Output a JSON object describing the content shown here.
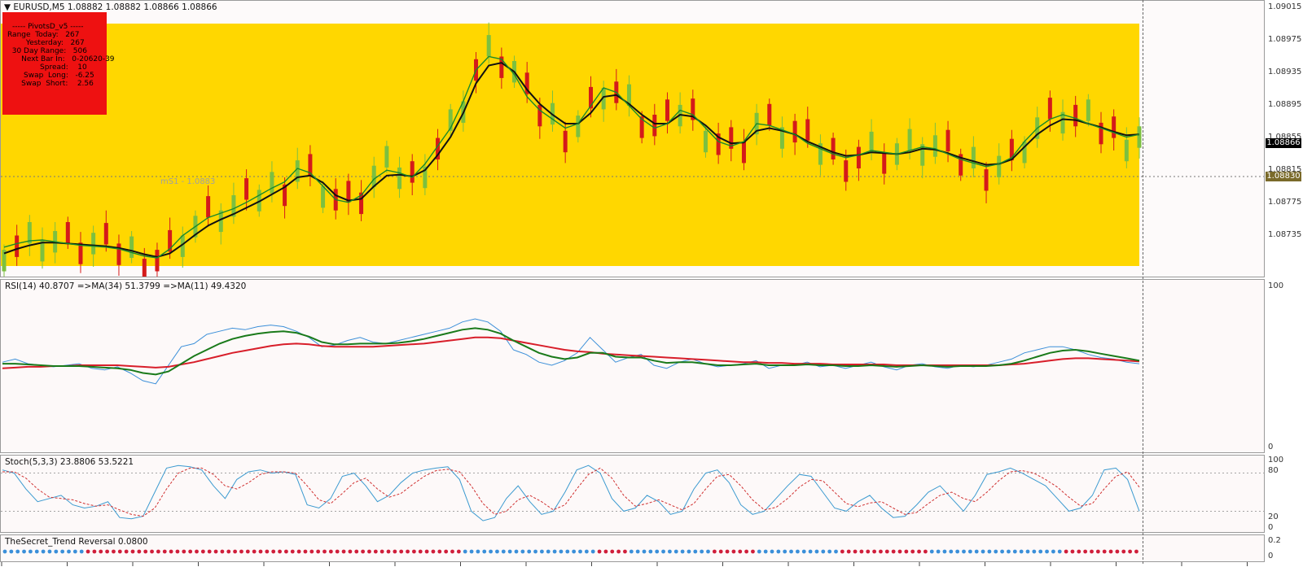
{
  "symbol_line": "▼ EURUSD,M5  1.08882 1.08882 1.08866 1.08866",
  "colors": {
    "yellow_band": "#ffd700",
    "bull_candle": "#7cc040",
    "bear_candle": "#d41a1a",
    "ma_fast": "#1a8a2a",
    "ma_slow": "#111111",
    "rsi_line": "#3b8fd9",
    "rsi_ma34": "#d81e2a",
    "rsi_ma11": "#1a7a1a",
    "stoch_main": "#3b9ad0",
    "stoch_signal": "#d03030",
    "trend_blue": "#3b8fd9",
    "trend_red": "#d01e3a"
  },
  "pivot": {
    "title": "----- PivotsD_v5 -----",
    "rows": [
      "Range  Today:   267",
      "        Yesterday:   267",
      "  30 Day Range:   506",
      "      Next Bar In:   0-20620-39",
      "              Spread:    10",
      "       Swap  Long:   -6.25",
      "      Swap  Short:    2.56"
    ]
  },
  "ms1_label": "mS1 - 1.0883",
  "price_axis": {
    "ticks": [
      "1.09015",
      "1.08975",
      "1.08935",
      "1.08895",
      "1.08855",
      "1.08815",
      "1.08775",
      "1.08735"
    ],
    "current_price": "1.08866",
    "level_price": "1.08830"
  },
  "rsi": {
    "title": "RSI(14) 40.8707  =>MA(34) 51.3799  =>MA(11) 49.4320",
    "ticks": [
      "100",
      "0"
    ]
  },
  "stoch": {
    "title": "Stoch(5,3,3) 23.8806 53.5221",
    "ticks": [
      "100",
      "80",
      "20",
      "0"
    ]
  },
  "trend": {
    "title": "TheSecret_Trend Reversal 0.0800",
    "ticks": [
      "0.2",
      "0"
    ]
  },
  "chart_data": {
    "type": "line",
    "price_min": 1.0872,
    "price_max": 1.0903,
    "ma_fast_closes": [
      1.08762,
      1.08766,
      1.08769,
      1.0877,
      1.08768,
      1.08766,
      1.08764,
      1.08763,
      1.08762,
      1.0876,
      1.08756,
      1.08752,
      1.0875,
      1.0876,
      1.08775,
      1.08785,
      1.08795,
      1.088,
      1.08805,
      1.08812,
      1.0882,
      1.08828,
      1.08835,
      1.0885,
      1.08845,
      1.0883,
      1.08815,
      1.08812,
      1.0882,
      1.08838,
      1.08848,
      1.08845,
      1.0884,
      1.08855,
      1.08875,
      1.08895,
      1.08925,
      1.0896,
      1.08975,
      1.08972,
      1.08955,
      1.0893,
      1.08915,
      1.08905,
      1.08895,
      1.089,
      1.0892,
      1.0894,
      1.08935,
      1.0892,
      1.08905,
      1.08895,
      1.089,
      1.08915,
      1.0891,
      1.08895,
      1.0888,
      1.08875,
      1.0888,
      1.089,
      1.08898,
      1.08893,
      1.08888,
      1.08878,
      1.08872,
      1.08866,
      1.08862,
      1.08865,
      1.0887,
      1.08868,
      1.08866,
      1.0887,
      1.08874,
      1.08872,
      1.08866,
      1.0886,
      1.08856,
      1.08852,
      1.08855,
      1.08862,
      1.0888,
      1.08895,
      1.08905,
      1.0891,
      1.08906,
      1.089,
      1.08895,
      1.0889,
      1.08885,
      1.08888
    ],
    "ma_slow_closes": [
      1.08755,
      1.0876,
      1.08764,
      1.08767,
      1.08767,
      1.08766,
      1.08765,
      1.08764,
      1.08763,
      1.08761,
      1.08758,
      1.08754,
      1.08751,
      1.08755,
      1.08765,
      1.08776,
      1.08786,
      1.08793,
      1.08799,
      1.08806,
      1.08813,
      1.08821,
      1.08829,
      1.0884,
      1.08842,
      1.08834,
      1.0882,
      1.08814,
      1.08816,
      1.0883,
      1.08842,
      1.08843,
      1.08841,
      1.08848,
      1.08865,
      1.08885,
      1.08912,
      1.08945,
      1.08965,
      1.08968,
      1.08958,
      1.08938,
      1.08922,
      1.0891,
      1.089,
      1.089,
      1.08912,
      1.0893,
      1.08932,
      1.08922,
      1.0891,
      1.089,
      1.089,
      1.0891,
      1.08908,
      1.08898,
      1.08885,
      1.08878,
      1.08879,
      1.08892,
      1.08895,
      1.08892,
      1.08888,
      1.0888,
      1.08874,
      1.08868,
      1.08864,
      1.08865,
      1.08868,
      1.08867,
      1.08866,
      1.08868,
      1.08872,
      1.08871,
      1.08867,
      1.08862,
      1.08858,
      1.08854,
      1.08855,
      1.0886,
      1.08874,
      1.08888,
      1.08898,
      1.08905,
      1.08904,
      1.089,
      1.08896,
      1.08891,
      1.08887,
      1.08888
    ],
    "rsi_values": [
      52,
      54,
      51,
      50,
      49,
      50,
      51,
      48,
      47,
      49,
      45,
      40,
      38,
      50,
      62,
      64,
      70,
      72,
      74,
      73,
      75,
      76,
      75,
      72,
      68,
      62,
      63,
      66,
      68,
      65,
      64,
      66,
      68,
      70,
      72,
      74,
      78,
      80,
      78,
      72,
      60,
      57,
      52,
      50,
      53,
      58,
      68,
      60,
      52,
      55,
      57,
      50,
      48,
      52,
      54,
      51,
      49,
      50,
      51,
      53,
      48,
      50,
      50,
      52,
      49,
      50,
      48,
      50,
      52,
      49,
      47,
      50,
      51,
      49,
      48,
      50,
      49,
      50,
      52,
      54,
      58,
      60,
      62,
      62,
      60,
      57,
      55,
      54,
      52,
      51
    ],
    "rsi_ma34": [
      48,
      48.5,
      49,
      49,
      49.5,
      49.5,
      50,
      50,
      50,
      50,
      49.5,
      49,
      48.5,
      49,
      50.5,
      52,
      54,
      56,
      58,
      59.5,
      61,
      62.5,
      63.5,
      64,
      63.5,
      62.5,
      62,
      62,
      62,
      62,
      62.5,
      63,
      63.5,
      64,
      65,
      66,
      67,
      68,
      68,
      67.5,
      66,
      64.5,
      63,
      61.5,
      60,
      59,
      58.5,
      57.5,
      57,
      56.5,
      56,
      55.5,
      55,
      54.5,
      54,
      53.5,
      53,
      52.5,
      52,
      52,
      51.5,
      51.5,
      51,
      51,
      51,
      50.5,
      50.5,
      50.5,
      50.5,
      50.5,
      50,
      50,
      50,
      50,
      50,
      50,
      50,
      50,
      50,
      50.5,
      51,
      52,
      53,
      54,
      54.5,
      54.5,
      54,
      53.5,
      53,
      52.5
    ],
    "rsi_ma11": [
      51,
      51,
      50.5,
      50,
      49.5,
      49.5,
      49.5,
      49,
      48.5,
      48,
      47,
      45,
      44,
      46,
      51,
      56,
      60,
      64,
      67,
      69,
      70.5,
      71.5,
      72,
      71,
      68.5,
      65,
      63.5,
      63.5,
      64,
      64,
      64,
      64.5,
      65.5,
      67,
      69,
      71,
      73,
      74,
      73,
      70.5,
      66,
      62,
      58,
      55.5,
      54,
      55,
      58,
      58,
      55.5,
      55,
      55,
      53,
      51.5,
      52,
      52,
      51,
      50,
      50,
      50.5,
      51,
      50,
      50,
      50,
      50.5,
      50,
      50,
      49.5,
      49.5,
      50,
      49.5,
      49,
      49.5,
      50,
      49.5,
      49,
      49.5,
      49.5,
      49.5,
      50,
      51,
      53,
      55.5,
      58,
      59.5,
      60,
      59,
      57.5,
      56,
      54.5,
      53
    ],
    "stoch_k": [
      85,
      80,
      55,
      35,
      40,
      45,
      30,
      25,
      28,
      35,
      10,
      8,
      12,
      50,
      88,
      92,
      90,
      85,
      60,
      40,
      70,
      82,
      85,
      80,
      82,
      78,
      30,
      25,
      40,
      75,
      80,
      60,
      35,
      45,
      65,
      80,
      85,
      88,
      90,
      70,
      20,
      5,
      10,
      40,
      60,
      35,
      15,
      20,
      50,
      85,
      92,
      80,
      40,
      20,
      25,
      45,
      35,
      15,
      20,
      55,
      80,
      85,
      65,
      30,
      15,
      20,
      40,
      60,
      78,
      75,
      50,
      25,
      20,
      35,
      45,
      25,
      10,
      12,
      30,
      50,
      60,
      40,
      20,
      45,
      78,
      82,
      88,
      80,
      70,
      60,
      40,
      20,
      25,
      45,
      85,
      88,
      70,
      20
    ],
    "stoch_d": [
      82,
      82,
      72,
      55,
      42,
      40,
      38,
      32,
      28,
      30,
      22,
      15,
      12,
      25,
      55,
      80,
      88,
      88,
      78,
      60,
      55,
      65,
      78,
      82,
      82,
      80,
      60,
      38,
      32,
      48,
      65,
      72,
      55,
      42,
      48,
      62,
      75,
      84,
      86,
      82,
      60,
      32,
      15,
      20,
      38,
      45,
      35,
      22,
      30,
      55,
      78,
      88,
      72,
      45,
      28,
      32,
      38,
      30,
      22,
      32,
      55,
      75,
      78,
      60,
      38,
      22,
      26,
      40,
      58,
      70,
      68,
      50,
      32,
      27,
      33,
      35,
      25,
      15,
      18,
      32,
      45,
      50,
      40,
      35,
      50,
      68,
      82,
      84,
      80,
      70,
      58,
      42,
      28,
      32,
      55,
      75,
      82,
      58
    ]
  }
}
